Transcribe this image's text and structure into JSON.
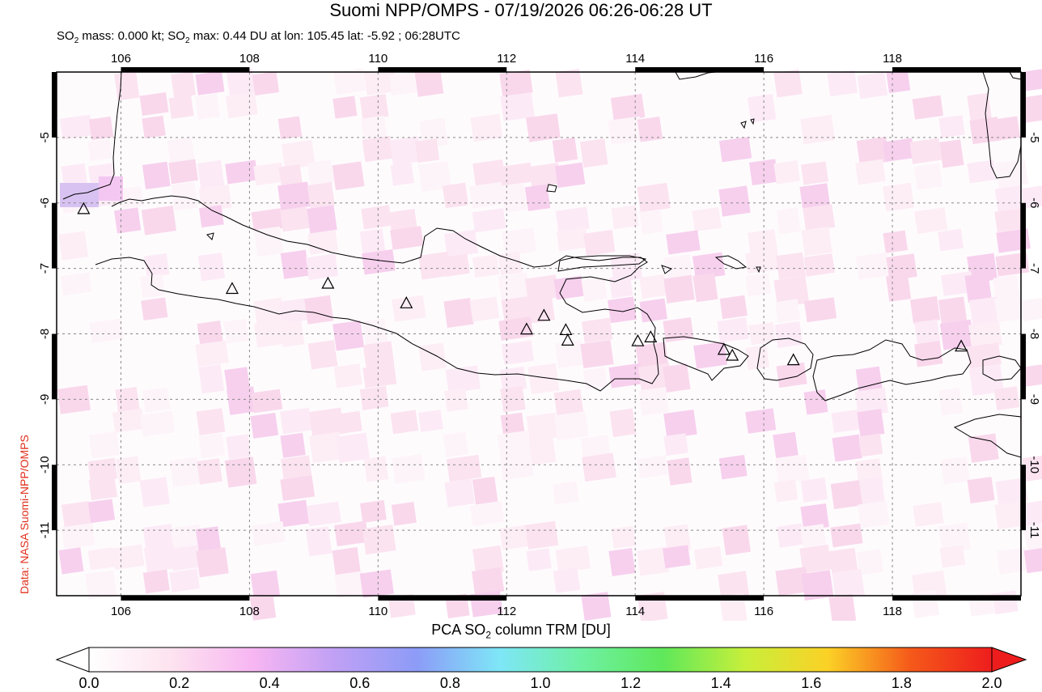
{
  "title": "Suomi NPP/OMPS - 07/19/2026 06:26-06:28 UT",
  "subtitle": {
    "part1": "SO",
    "sub1": "2",
    "part2": " mass: 0.000 kt; SO",
    "sub2": "2",
    "part3": " max: 0.44 DU at lon: 105.45 lat: -5.92 ; 06:28UTC"
  },
  "credit": "Data: NASA Suomi-NPP/OMPS",
  "map": {
    "lon_range": [
      105,
      120
    ],
    "lat_range": [
      -12,
      -4
    ],
    "x_ticks": [
      106,
      108,
      110,
      112,
      114,
      116,
      118
    ],
    "x_tick_labels": [
      "106",
      "108",
      "110",
      "112",
      "114",
      "116",
      "118"
    ],
    "y_ticks": [
      -5,
      -6,
      -7,
      -8,
      -9,
      -10,
      -11
    ],
    "y_tick_labels": [
      "-5",
      "-6",
      "-7",
      "-8",
      "-9",
      "-10",
      "-11"
    ],
    "grid": "dashed",
    "volcanoes": [
      {
        "lon": 105.42,
        "lat": -6.1
      },
      {
        "lon": 107.73,
        "lat": -7.32
      },
      {
        "lon": 109.22,
        "lat": -7.24
      },
      {
        "lon": 110.44,
        "lat": -7.54
      },
      {
        "lon": 112.31,
        "lat": -7.94
      },
      {
        "lon": 112.58,
        "lat": -7.73
      },
      {
        "lon": 112.92,
        "lat": -7.95
      },
      {
        "lon": 112.95,
        "lat": -8.11
      },
      {
        "lon": 114.04,
        "lat": -8.12
      },
      {
        "lon": 114.24,
        "lat": -8.06
      },
      {
        "lon": 115.38,
        "lat": -8.25
      },
      {
        "lon": 115.51,
        "lat": -8.34
      },
      {
        "lon": 116.46,
        "lat": -8.41
      },
      {
        "lon": 119.07,
        "lat": -8.2
      }
    ]
  },
  "colorbar": {
    "title_part1": "PCA SO",
    "title_sub": "2",
    "title_part2": " column TRM [DU]",
    "labels": [
      "0.0",
      "0.2",
      "0.4",
      "0.6",
      "0.8",
      "1.0",
      "1.2",
      "1.4",
      "1.6",
      "1.8",
      "2.0"
    ],
    "colors": [
      "#ffffff",
      "#fde3ef",
      "#f7b6f2",
      "#c0a0f5",
      "#8c9cf7",
      "#7ee6f7",
      "#6ef0a4",
      "#5fe85a",
      "#c8ef3a",
      "#fbd126",
      "#f55a1a",
      "#ee1d1d"
    ]
  }
}
